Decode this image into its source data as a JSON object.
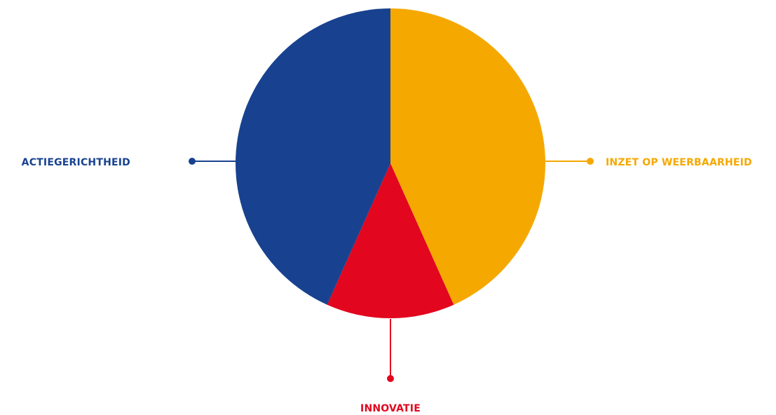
{
  "chart_data": {
    "type": "pie",
    "slices": [
      {
        "label": "INZET OP WEERBAARHEID",
        "value": 43.3,
        "color": "#F5A800"
      },
      {
        "label": "INNOVATIE",
        "value": 13.4,
        "color": "#E2061F"
      },
      {
        "label": "ACTIEGERICHTHEID",
        "value": 43.3,
        "color": "#18428F"
      }
    ],
    "start_angle_deg": 0,
    "direction": "clockwise",
    "legend": "callout labels"
  }
}
